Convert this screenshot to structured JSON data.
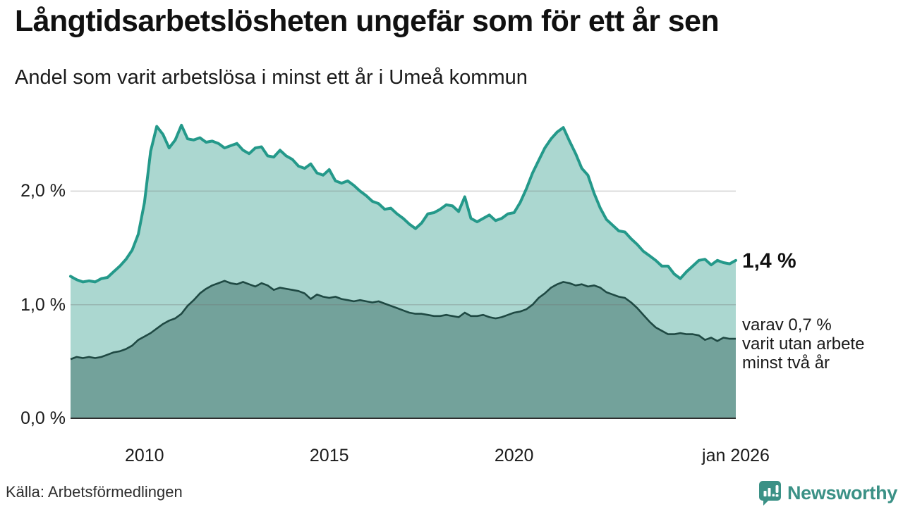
{
  "header": {
    "title": "Långtidsarbetslösheten ungefär som för ett år sen",
    "subtitle": "Andel som varit arbetslösa i minst ett år i Umeå kommun"
  },
  "footer": {
    "source": "Källa: Arbetsförmedlingen",
    "brand": "Newsworthy"
  },
  "colors": {
    "line_1yr": "#24998a",
    "fill_1yr": "#abd7d0",
    "line_2yr": "#1f4943",
    "fill_2yr": "#73a29b",
    "gridline": "#d5d5d5",
    "axis": "#2f2f2f",
    "brand_teal": "#3b9186"
  },
  "chart_data": {
    "type": "area",
    "title": "Långtidsarbetslösheten ungefär som för ett år sen",
    "subtitle": "Andel som varit arbetslösa i minst ett år i Umeå kommun",
    "x_start_year": 2008,
    "x_end_year": 2026,
    "x_step_months": 2,
    "x_tick_years": [
      2010,
      2015,
      2020,
      2026
    ],
    "x_tick_labels": [
      "2010",
      "2015",
      "2020",
      "jan 2026"
    ],
    "y_ticks": [
      0,
      1,
      2
    ],
    "y_tick_labels": [
      "0,0 %",
      "1,0 %",
      "2,0 %"
    ],
    "ylim": [
      0,
      2.69
    ],
    "grid": "horizontal-only",
    "legend_position": "right-annotations",
    "annotations": {
      "end_value_label": "1,4 %",
      "sub_label_lines": [
        "varav 0,7 %",
        "varit utan arbete",
        "minst två år"
      ]
    },
    "series": [
      {
        "name": "Andel arbetslösa minst ett år",
        "end_value_pct": 1.4,
        "color": "#24998a",
        "fill": "#abd7d0",
        "values": [
          1.25,
          1.22,
          1.2,
          1.21,
          1.2,
          1.23,
          1.24,
          1.29,
          1.34,
          1.4,
          1.48,
          1.62,
          1.9,
          2.35,
          2.57,
          2.5,
          2.38,
          2.45,
          2.58,
          2.46,
          2.45,
          2.47,
          2.43,
          2.44,
          2.42,
          2.38,
          2.4,
          2.42,
          2.36,
          2.33,
          2.38,
          2.39,
          2.31,
          2.3,
          2.36,
          2.31,
          2.28,
          2.22,
          2.2,
          2.24,
          2.16,
          2.14,
          2.19,
          2.09,
          2.07,
          2.09,
          2.05,
          2.0,
          1.96,
          1.91,
          1.89,
          1.84,
          1.85,
          1.8,
          1.76,
          1.71,
          1.67,
          1.72,
          1.8,
          1.81,
          1.84,
          1.88,
          1.87,
          1.82,
          1.95,
          1.76,
          1.73,
          1.76,
          1.79,
          1.74,
          1.76,
          1.8,
          1.81,
          1.9,
          2.02,
          2.16,
          2.27,
          2.38,
          2.46,
          2.52,
          2.56,
          2.44,
          2.33,
          2.2,
          2.14,
          1.98,
          1.85,
          1.75,
          1.7,
          1.65,
          1.64,
          1.58,
          1.53,
          1.47,
          1.43,
          1.39,
          1.34,
          1.34,
          1.27,
          1.23,
          1.29,
          1.34,
          1.39,
          1.4,
          1.35,
          1.39,
          1.37,
          1.36,
          1.39
        ]
      },
      {
        "name": "varav utan arbete minst två år",
        "end_value_pct": 0.7,
        "color": "#1f4943",
        "fill": "#73a29b",
        "values": [
          0.52,
          0.54,
          0.53,
          0.54,
          0.53,
          0.54,
          0.56,
          0.58,
          0.59,
          0.61,
          0.64,
          0.69,
          0.72,
          0.75,
          0.79,
          0.83,
          0.86,
          0.88,
          0.92,
          0.99,
          1.04,
          1.1,
          1.14,
          1.17,
          1.19,
          1.21,
          1.19,
          1.18,
          1.2,
          1.18,
          1.16,
          1.19,
          1.17,
          1.13,
          1.15,
          1.14,
          1.13,
          1.12,
          1.1,
          1.05,
          1.09,
          1.07,
          1.06,
          1.07,
          1.05,
          1.04,
          1.03,
          1.04,
          1.03,
          1.02,
          1.03,
          1.01,
          0.99,
          0.97,
          0.95,
          0.93,
          0.92,
          0.92,
          0.91,
          0.9,
          0.9,
          0.91,
          0.9,
          0.89,
          0.93,
          0.9,
          0.9,
          0.91,
          0.89,
          0.88,
          0.89,
          0.91,
          0.93,
          0.94,
          0.96,
          1.0,
          1.06,
          1.1,
          1.15,
          1.18,
          1.2,
          1.19,
          1.17,
          1.18,
          1.16,
          1.17,
          1.15,
          1.11,
          1.09,
          1.07,
          1.06,
          1.02,
          0.97,
          0.91,
          0.85,
          0.8,
          0.77,
          0.74,
          0.74,
          0.75,
          0.74,
          0.74,
          0.73,
          0.69,
          0.71,
          0.68,
          0.71,
          0.7,
          0.7
        ]
      }
    ]
  }
}
